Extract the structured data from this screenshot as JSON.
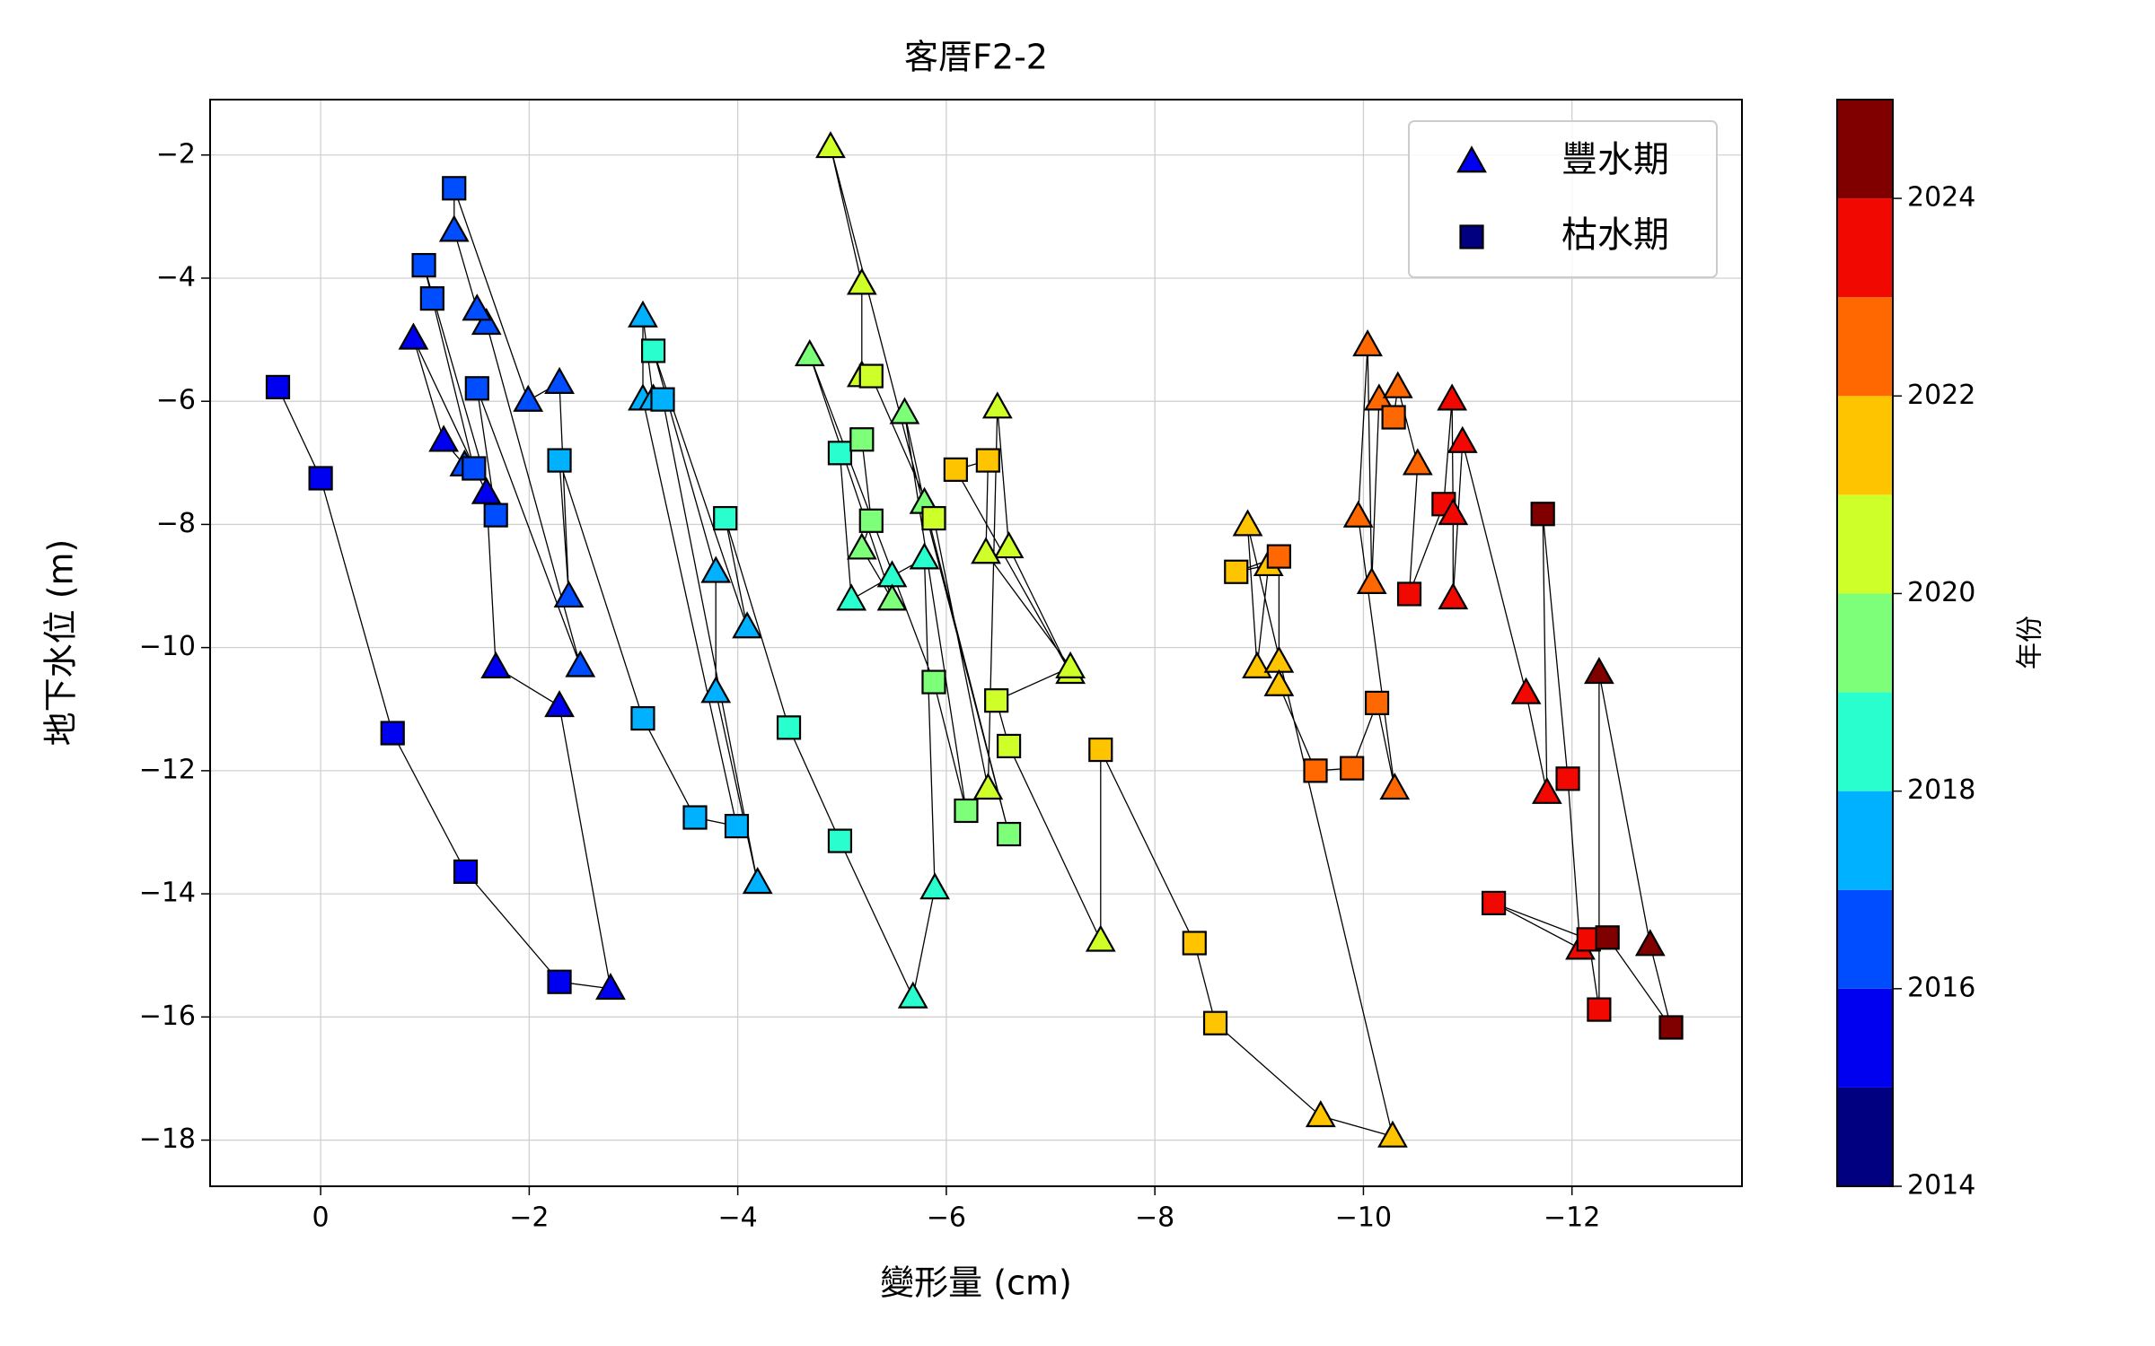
{
  "chart_data": {
    "type": "scatter",
    "title": "客厝F2-2",
    "xlabel": "變形量 (cm)",
    "ylabel": "地下水位 (m)",
    "xlim": [
      1.06,
      -13.63
    ],
    "ylim": [
      -18.75,
      -1.1
    ],
    "xticks": [
      0,
      {
        "value": -2,
        "label": "−2"
      },
      {
        "value": -4,
        "label": "−4"
      },
      {
        "value": -6,
        "label": "−6"
      },
      {
        "value": -8,
        "label": "−8"
      },
      {
        "value": -10,
        "label": "−10"
      },
      {
        "value": -12,
        "label": "−12"
      }
    ],
    "yticks": [
      {
        "value": -2,
        "label": "−2"
      },
      {
        "value": -4,
        "label": "−4"
      },
      {
        "value": -6,
        "label": "−6"
      },
      {
        "value": -8,
        "label": "−8"
      },
      {
        "value": -10,
        "label": "−10"
      },
      {
        "value": -12,
        "label": "−12"
      },
      {
        "value": -14,
        "label": "−14"
      },
      {
        "value": -16,
        "label": "−16"
      },
      {
        "value": -18,
        "label": "−18"
      }
    ],
    "grid": true,
    "legend_position": "upper right",
    "legend": [
      {
        "name": "豐水期",
        "marker": "triangle",
        "color": "#0000f1"
      },
      {
        "name": "枯水期",
        "marker": "square",
        "color": "#000080"
      }
    ],
    "colorbar": {
      "label": "年份",
      "clim": [
        2014,
        2025
      ],
      "cticks": [
        2014,
        2016,
        2018,
        2020,
        2022,
        2024
      ],
      "colors": [
        "#000080",
        "#0000f1",
        "#004dff",
        "#00b1ff",
        "#29ffce",
        "#7dff7a",
        "#ceff29",
        "#ffc400",
        "#ff6800",
        "#f10800",
        "#800000"
      ]
    },
    "points": {
      "x": [
        0.41,
        0,
        -0.69,
        -1.39,
        -2.29,
        -2.78,
        -2.29,
        -1.68,
        -1.59,
        -0.89,
        -1.18,
        -1.38,
        -1.47,
        -1.07,
        -0.99,
        -1.68,
        -1.5,
        -2.49,
        -1.59,
        -1.5,
        -1.28,
        -1.28,
        -1.99,
        -2.29,
        -2.38,
        -2.29,
        -3.09,
        -3.59,
        -3.99,
        -3.09,
        -3.09,
        -3.19,
        -3.28,
        -4.19,
        -3.79,
        -3.79,
        -3.19,
        -4.09,
        -3.88,
        -4.49,
        -4.98,
        -5.68,
        -5.89,
        -5.79,
        -5.48,
        -5.09,
        -4.98,
        -5.19,
        -5.28,
        -5.19,
        -5.48,
        -4.69,
        -5.88,
        -6.19,
        -5.6,
        -5.79,
        -6.6,
        -4.89,
        -5.19,
        -5.19,
        -5.28,
        -5.88,
        -6.4,
        -6.49,
        -6.6,
        -7.19,
        -6.09,
        -6.4,
        -6.38,
        -7.19,
        -6.48,
        -6.6,
        -7.48,
        -7.48,
        -8.38,
        -8.58,
        -9.59,
        -10.28,
        -8.89,
        -8.98,
        -9.09,
        -8.78,
        -9.19,
        -9.19,
        -9.19,
        -9.54,
        -9.89,
        -10.13,
        -10.3,
        -9.95,
        -10.04,
        -10.08,
        -10.15,
        -10.29,
        -10.33,
        -10.52,
        -10.44,
        -10.77,
        -10.85,
        -10.86,
        -10.86,
        -10.95,
        -11.56,
        -11.76,
        -11.72,
        -11.96,
        -12.08,
        -11.25,
        -12.16,
        -12.26,
        -12.26,
        -12.75,
        -12.95,
        -12.34
      ],
      "y": [
        -5.77,
        -7.25,
        -11.39,
        -13.64,
        -15.43,
        -15.54,
        -10.95,
        -10.32,
        -7.49,
        -4.98,
        -6.64,
        -7.04,
        -7.09,
        -4.33,
        -3.79,
        -7.85,
        -5.79,
        -10.3,
        -4.74,
        -4.51,
        -3.23,
        -2.54,
        -5.99,
        -5.7,
        -9.17,
        -6.96,
        -11.15,
        -12.76,
        -12.9,
        -5.97,
        -4.62,
        -5.97,
        -5.97,
        -13.82,
        -10.72,
        -8.77,
        -5.18,
        -9.67,
        -7.9,
        -11.3,
        -13.14,
        -15.68,
        -13.91,
        -8.55,
        -8.84,
        -9.22,
        -6.84,
        -6.62,
        -7.94,
        -8.39,
        -9.22,
        -5.25,
        -10.56,
        -12.65,
        -6.19,
        -7.65,
        -13.03,
        -1.87,
        -4.09,
        -5.59,
        -5.59,
        -7.9,
        -12.29,
        -6.1,
        -8.37,
        -10.41,
        -7.11,
        -6.96,
        -8.46,
        -10.32,
        -10.86,
        -11.6,
        -14.76,
        -11.66,
        -14.8,
        -16.1,
        -17.61,
        -17.94,
        -8.01,
        -10.32,
        -8.66,
        -8.77,
        -8.52,
        -10.23,
        -10.61,
        -12.0,
        -11.96,
        -10.9,
        -12.29,
        -7.87,
        -5.09,
        -8.95,
        -5.97,
        -6.26,
        -5.77,
        -7.02,
        -9.13,
        -7.67,
        -5.97,
        -7.83,
        -9.2,
        -6.66,
        -10.74,
        -12.36,
        -7.83,
        -12.13,
        -14.89,
        -14.15,
        -14.74,
        -15.88,
        -10.41,
        -14.83,
        -16.17,
        -14.71
      ],
      "year": [
        2015,
        2015,
        2015,
        2015,
        2015,
        2015,
        2015,
        2015,
        2015,
        2015,
        2015,
        2016,
        2016,
        2016,
        2016,
        2016,
        2016,
        2016,
        2016,
        2016,
        2016,
        2016,
        2016,
        2016,
        2016,
        2017,
        2017,
        2017,
        2017,
        2017,
        2017,
        2017,
        2017,
        2017,
        2017,
        2017,
        2018,
        2017,
        2018,
        2018,
        2018,
        2018,
        2018,
        2018,
        2018,
        2018,
        2018,
        2019,
        2019,
        2019,
        2019,
        2019,
        2019,
        2019,
        2019,
        2019,
        2019,
        2020,
        2020,
        2020,
        2020,
        2020,
        2020,
        2020,
        2020,
        2020,
        2021,
        2021,
        2020,
        2020,
        2020,
        2020,
        2020,
        2021,
        2021,
        2021,
        2021,
        2021,
        2021,
        2021,
        2021,
        2021,
        2022,
        2021,
        2021,
        2022,
        2022,
        2022,
        2022,
        2022,
        2022,
        2022,
        2022,
        2022,
        2022,
        2022,
        2023,
        2023,
        2023,
        2023,
        2023,
        2023,
        2023,
        2023,
        2024,
        2023,
        2023,
        2023,
        2023,
        2023,
        2024,
        2024,
        2024,
        2024
      ],
      "season": [
        "枯水期",
        "枯水期",
        "枯水期",
        "枯水期",
        "枯水期",
        "豐水期",
        "豐水期",
        "豐水期",
        "豐水期",
        "豐水期",
        "豐水期",
        "豐水期",
        "枯水期",
        "枯水期",
        "枯水期",
        "枯水期",
        "枯水期",
        "豐水期",
        "豐水期",
        "豐水期",
        "豐水期",
        "枯水期",
        "豐水期",
        "豐水期",
        "豐水期",
        "枯水期",
        "枯水期",
        "枯水期",
        "枯水期",
        "豐水期",
        "豐水期",
        "豐水期",
        "枯水期",
        "豐水期",
        "豐水期",
        "豐水期",
        "枯水期",
        "豐水期",
        "枯水期",
        "枯水期",
        "枯水期",
        "豐水期",
        "豐水期",
        "豐水期",
        "豐水期",
        "豐水期",
        "枯水期",
        "枯水期",
        "枯水期",
        "豐水期",
        "豐水期",
        "豐水期",
        "枯水期",
        "枯水期",
        "豐水期",
        "豐水期",
        "枯水期",
        "豐水期",
        "豐水期",
        "豐水期",
        "枯水期",
        "枯水期",
        "豐水期",
        "豐水期",
        "豐水期",
        "豐水期",
        "枯水期",
        "枯水期",
        "豐水期",
        "豐水期",
        "枯水期",
        "枯水期",
        "豐水期",
        "枯水期",
        "枯水期",
        "枯水期",
        "豐水期",
        "豐水期",
        "豐水期",
        "豐水期",
        "豐水期",
        "枯水期",
        "枯水期",
        "豐水期",
        "豐水期",
        "枯水期",
        "枯水期",
        "枯水期",
        "豐水期",
        "豐水期",
        "豐水期",
        "豐水期",
        "豐水期",
        "枯水期",
        "豐水期",
        "豐水期",
        "枯水期",
        "枯水期",
        "豐水期",
        "豐水期",
        "豐水期",
        "豐水期",
        "豐水期",
        "豐水期",
        "枯水期",
        "枯水期",
        "豐水期",
        "枯水期",
        "枯水期",
        "枯水期",
        "豐水期",
        "豐水期",
        "枯水期",
        "枯水期"
      ]
    }
  }
}
